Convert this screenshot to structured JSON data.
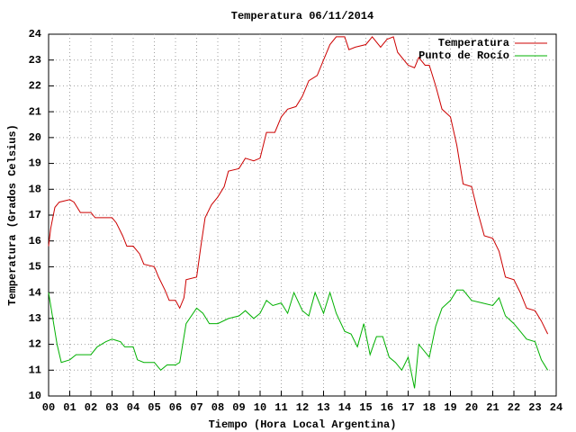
{
  "chart_data": {
    "type": "line",
    "title": "Temperatura 06/11/2014",
    "xlabel": "Tiempo (Hora Local Argentina)",
    "ylabel": "Temperatura (Grados Celsius)",
    "xlim": [
      0,
      24
    ],
    "ylim": [
      10,
      24
    ],
    "xticks": [
      {
        "value": 0,
        "label": "00"
      },
      {
        "value": 1,
        "label": "01"
      },
      {
        "value": 2,
        "label": "02"
      },
      {
        "value": 3,
        "label": "03"
      },
      {
        "value": 4,
        "label": "04"
      },
      {
        "value": 5,
        "label": "05"
      },
      {
        "value": 6,
        "label": "06"
      },
      {
        "value": 7,
        "label": "07"
      },
      {
        "value": 8,
        "label": "08"
      },
      {
        "value": 9,
        "label": "09"
      },
      10,
      11,
      12,
      13,
      14,
      15,
      16,
      17,
      18,
      19,
      20,
      21,
      22,
      23,
      24
    ],
    "yticks": [
      10,
      11,
      12,
      13,
      14,
      15,
      16,
      17,
      18,
      19,
      20,
      21,
      22,
      23,
      24
    ],
    "grid": true,
    "legend": "top-right",
    "series": [
      {
        "name": "Temperatura",
        "color": "#cc0000",
        "x": [
          0,
          0.1,
          0.3,
          0.5,
          1,
          1.2,
          1.5,
          2,
          2.2,
          3,
          3.2,
          3.5,
          3.7,
          4,
          4.3,
          4.5,
          5,
          5.2,
          5.5,
          5.7,
          6,
          6.2,
          6.4,
          6.5,
          7,
          7.2,
          7.4,
          7.7,
          8,
          8.3,
          8.5,
          9,
          9.3,
          9.7,
          10,
          10.3,
          10.7,
          11,
          11.3,
          11.7,
          12,
          12.3,
          12.7,
          13,
          13.3,
          13.6,
          14,
          14.2,
          14.5,
          15,
          15.3,
          15.7,
          16,
          16.3,
          16.5,
          17,
          17.3,
          17.5,
          17.8,
          18,
          18.3,
          18.6,
          19,
          19.3,
          19.6,
          20,
          20.3,
          20.6,
          21,
          21.3,
          21.6,
          22,
          22.3,
          22.6,
          23,
          23.3,
          23.6
        ],
        "values": [
          15.8,
          16.5,
          17.3,
          17.5,
          17.6,
          17.5,
          17.1,
          17.1,
          16.9,
          16.9,
          16.7,
          16.2,
          15.8,
          15.8,
          15.5,
          15.1,
          15.0,
          14.6,
          14.1,
          13.7,
          13.7,
          13.4,
          13.8,
          14.5,
          14.6,
          15.8,
          16.9,
          17.4,
          17.7,
          18.1,
          18.7,
          18.8,
          19.2,
          19.1,
          19.2,
          20.2,
          20.2,
          20.8,
          21.1,
          21.2,
          21.6,
          22.2,
          22.4,
          23.0,
          23.6,
          23.9,
          23.9,
          23.4,
          23.5,
          23.6,
          23.9,
          23.5,
          23.8,
          23.9,
          23.3,
          22.8,
          22.7,
          23.1,
          22.8,
          22.8,
          22.0,
          21.1,
          20.8,
          19.7,
          18.2,
          18.1,
          17.1,
          16.2,
          16.1,
          15.6,
          14.6,
          14.5,
          14.0,
          13.4,
          13.3,
          12.9,
          12.4
        ]
      },
      {
        "name": "Punto de Rocío",
        "color": "#00b000",
        "x": [
          0,
          0.2,
          0.4,
          0.6,
          1,
          1.3,
          2,
          2.3,
          2.7,
          3,
          3.4,
          3.6,
          4,
          4.2,
          4.5,
          5,
          5.3,
          5.6,
          6,
          6.2,
          6.5,
          7,
          7.3,
          7.6,
          8,
          8.5,
          9,
          9.3,
          9.7,
          10,
          10.3,
          10.6,
          11,
          11.3,
          11.6,
          12,
          12.3,
          12.6,
          13,
          13.3,
          13.6,
          14,
          14.3,
          14.6,
          14.9,
          15.2,
          15.5,
          15.8,
          16.1,
          16.4,
          16.7,
          17,
          17.3,
          17.5,
          18,
          18.3,
          18.6,
          19,
          19.3,
          19.6,
          20,
          20.5,
          21,
          21.3,
          21.6,
          22,
          22.3,
          22.6,
          23,
          23.3,
          23.6
        ],
        "values": [
          14.0,
          13.0,
          12.0,
          11.3,
          11.4,
          11.6,
          11.6,
          11.9,
          12.1,
          12.2,
          12.1,
          11.9,
          11.9,
          11.4,
          11.3,
          11.3,
          11.0,
          11.2,
          11.2,
          11.3,
          12.8,
          13.4,
          13.2,
          12.8,
          12.8,
          13.0,
          13.1,
          13.3,
          13.0,
          13.2,
          13.7,
          13.5,
          13.6,
          13.2,
          14.0,
          13.3,
          13.1,
          14.0,
          13.2,
          14.0,
          13.2,
          12.5,
          12.4,
          11.9,
          12.8,
          11.6,
          12.3,
          12.3,
          11.5,
          11.3,
          11.0,
          11.5,
          10.3,
          12.0,
          11.5,
          12.7,
          13.4,
          13.7,
          14.1,
          14.1,
          13.7,
          13.6,
          13.5,
          13.8,
          13.1,
          12.8,
          12.5,
          12.2,
          12.1,
          11.4,
          11.0
        ]
      }
    ]
  }
}
